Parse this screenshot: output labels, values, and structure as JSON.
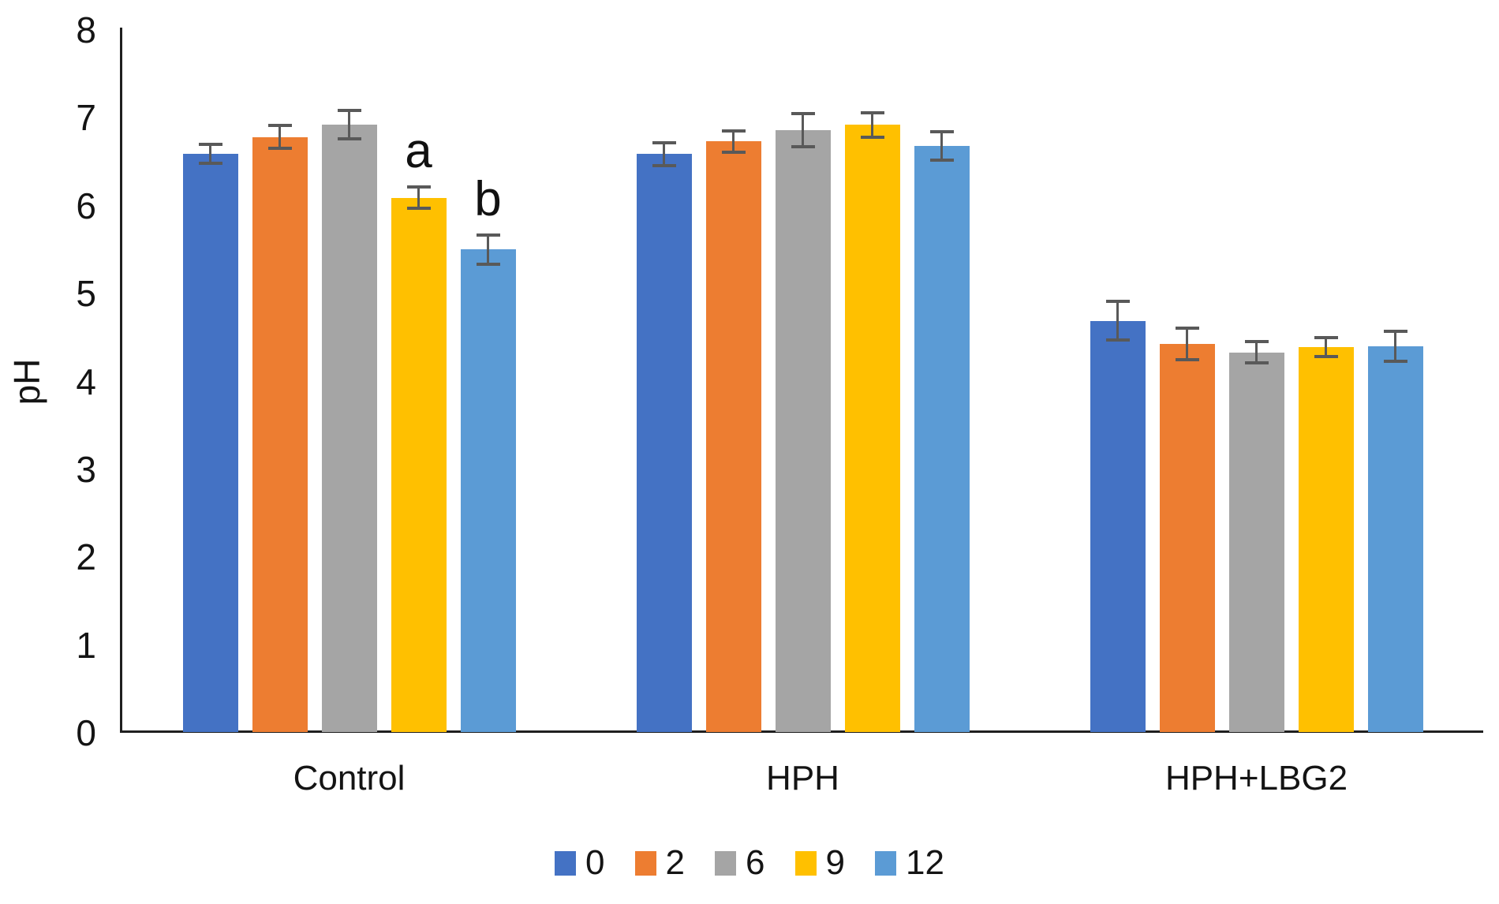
{
  "chart_data": {
    "type": "bar",
    "title": "",
    "xlabel": "",
    "ylabel": "pH",
    "ylim": [
      0,
      8
    ],
    "yticks": [
      0,
      1,
      2,
      3,
      4,
      5,
      6,
      7,
      8
    ],
    "grid": false,
    "legend_position": "bottom",
    "categories": [
      "Control",
      "HPH",
      "HPH+LBG2"
    ],
    "series": [
      {
        "name": "0",
        "color": "#4472C4",
        "values": [
          6.59,
          6.59,
          4.69
        ],
        "errors": [
          0.11,
          0.13,
          0.22
        ]
      },
      {
        "name": "2",
        "color": "#ED7D31",
        "values": [
          6.78,
          6.73,
          4.43
        ],
        "errors": [
          0.13,
          0.12,
          0.18
        ]
      },
      {
        "name": "6",
        "color": "#A5A5A5",
        "values": [
          6.92,
          6.86,
          4.33
        ],
        "errors": [
          0.16,
          0.19,
          0.12
        ]
      },
      {
        "name": "9",
        "color": "#FFC000",
        "values": [
          6.09,
          6.92,
          4.39
        ],
        "errors": [
          0.12,
          0.14,
          0.11
        ]
      },
      {
        "name": "12",
        "color": "#5B9BD5",
        "values": [
          5.5,
          6.68,
          4.4
        ],
        "errors": [
          0.17,
          0.16,
          0.17
        ]
      }
    ],
    "annotations": [
      {
        "text": "a",
        "category_index": 0,
        "series_index": 3
      },
      {
        "text": "b",
        "category_index": 0,
        "series_index": 4
      }
    ],
    "error_bar_color": "#595959",
    "axis_color": "#1f1f1f",
    "text_color": "#141414",
    "background_color": "#ffffff"
  }
}
